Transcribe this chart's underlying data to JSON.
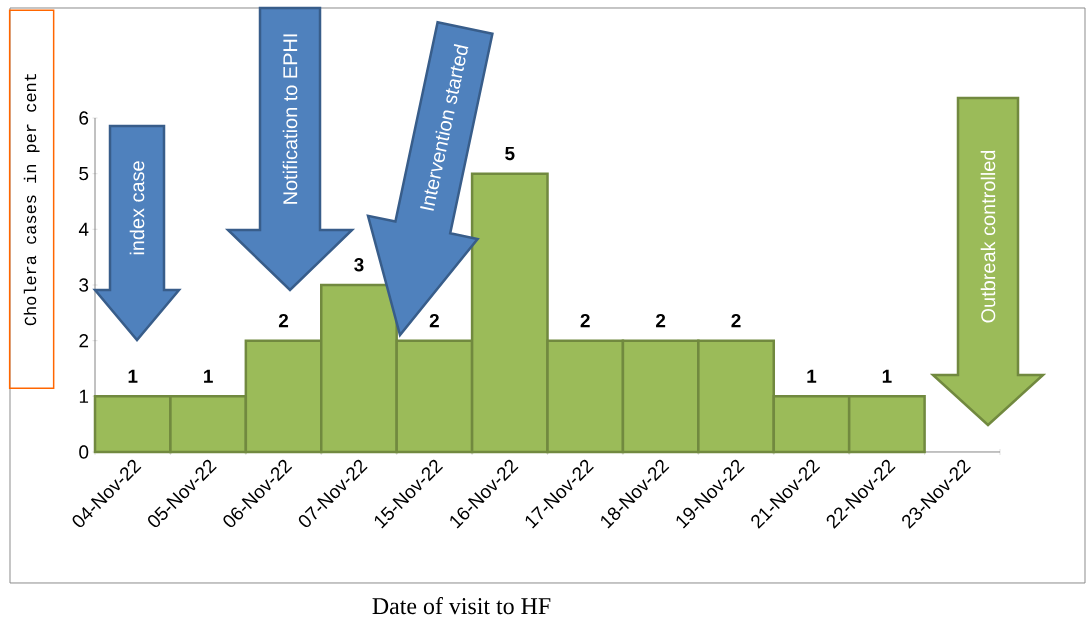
{
  "chart_data": {
    "type": "bar",
    "xlabel": "Date of visit to HF",
    "ylabel": "Cholera cases in per cent",
    "categories": [
      "04-Nov-22",
      "05-Nov-22",
      "06-Nov-22",
      "07-Nov-22",
      "15-Nov-22",
      "16-Nov-22",
      "17-Nov-22",
      "18-Nov-22",
      "19-Nov-22",
      "21-Nov-22",
      "22-Nov-22",
      "23-Nov-22"
    ],
    "values": [
      1,
      1,
      2,
      3,
      2,
      5,
      2,
      2,
      2,
      1,
      1,
      null
    ],
    "color": "#9bbb59",
    "ylim": [
      0,
      6
    ],
    "yticks": [
      0,
      1,
      2,
      3,
      4,
      5,
      6
    ],
    "data_labels": true,
    "annotations": [
      "index case",
      "Notification to EPHI",
      "Intervention started",
      "Outbreak controlled"
    ]
  }
}
